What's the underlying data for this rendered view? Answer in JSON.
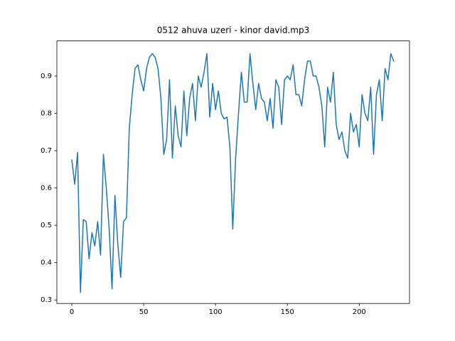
{
  "chart_data": {
    "type": "line",
    "title": "0512 ahuva uzeri - kinor david.mp3",
    "x": [
      0,
      2,
      4,
      6,
      8,
      10,
      12,
      14,
      16,
      18,
      20,
      22,
      24,
      26,
      28,
      30,
      32,
      34,
      36,
      38,
      40,
      42,
      44,
      46,
      48,
      50,
      52,
      54,
      56,
      58,
      60,
      62,
      64,
      66,
      68,
      70,
      72,
      74,
      76,
      78,
      80,
      82,
      84,
      86,
      88,
      90,
      92,
      94,
      96,
      98,
      100,
      102,
      104,
      106,
      108,
      110,
      112,
      114,
      116,
      118,
      120,
      122,
      124,
      126,
      128,
      130,
      132,
      134,
      136,
      138,
      140,
      142,
      144,
      146,
      148,
      150,
      152,
      154,
      156,
      158,
      160,
      162,
      164,
      166,
      168,
      170,
      172,
      174,
      176,
      178,
      180,
      182,
      184,
      186,
      188,
      190,
      192,
      194,
      196,
      198,
      200,
      202,
      204,
      206,
      208,
      210,
      212,
      214,
      216,
      218,
      220,
      222,
      224
    ],
    "series": [
      {
        "color": "#1f77b4",
        "values": [
          0.675,
          0.61,
          0.695,
          0.32,
          0.515,
          0.51,
          0.41,
          0.48,
          0.445,
          0.51,
          0.42,
          0.69,
          0.6,
          0.49,
          0.33,
          0.58,
          0.45,
          0.36,
          0.51,
          0.52,
          0.76,
          0.85,
          0.92,
          0.93,
          0.89,
          0.86,
          0.92,
          0.95,
          0.96,
          0.95,
          0.92,
          0.84,
          0.69,
          0.73,
          0.89,
          0.68,
          0.82,
          0.74,
          0.71,
          0.86,
          0.74,
          0.84,
          0.88,
          0.78,
          0.9,
          0.87,
          0.91,
          0.96,
          0.79,
          0.88,
          0.81,
          0.86,
          0.8,
          0.785,
          0.79,
          0.71,
          0.49,
          0.68,
          0.8,
          0.91,
          0.83,
          0.83,
          0.96,
          0.88,
          0.81,
          0.88,
          0.84,
          0.83,
          0.78,
          0.84,
          0.76,
          0.89,
          0.87,
          0.77,
          0.89,
          0.9,
          0.89,
          0.93,
          0.85,
          0.85,
          0.82,
          0.89,
          0.94,
          0.94,
          0.9,
          0.9,
          0.87,
          0.82,
          0.71,
          0.87,
          0.83,
          0.91,
          0.77,
          0.73,
          0.75,
          0.7,
          0.68,
          0.8,
          0.75,
          0.77,
          0.71,
          0.85,
          0.8,
          0.78,
          0.87,
          0.69,
          0.85,
          0.89,
          0.78,
          0.92,
          0.89,
          0.96,
          0.94
        ]
      }
    ],
    "xlim": [
      -10.4,
      235
    ],
    "ylim": [
      0.2905,
      0.994
    ],
    "xticks": [
      0,
      50,
      100,
      150,
      200
    ],
    "yticks": [
      0.3,
      0.4,
      0.5,
      0.6,
      0.7,
      0.8,
      0.9
    ]
  }
}
